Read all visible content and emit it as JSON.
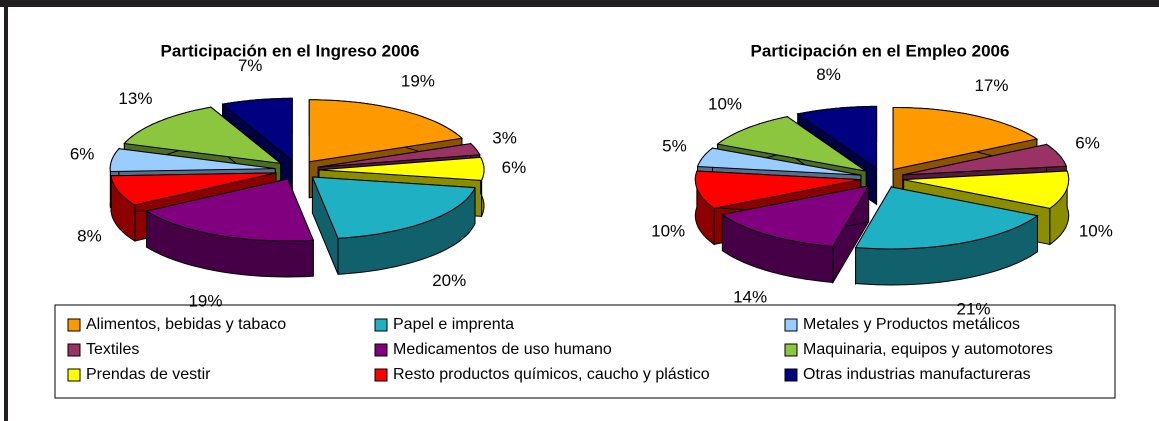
{
  "chart_data": [
    {
      "type": "pie",
      "title": "Participación en el Ingreso 2006",
      "values": [
        19,
        3,
        6,
        20,
        19,
        8,
        6,
        13,
        7
      ],
      "value_labels": [
        "19%",
        "3%",
        "6%",
        "20%",
        "19%",
        "8%",
        "6%",
        "13%",
        "7%"
      ]
    },
    {
      "type": "pie",
      "title": "Participación en el Empleo 2006",
      "values": [
        17,
        6,
        10,
        21,
        14,
        10,
        5,
        10,
        8
      ],
      "value_labels": [
        "17%",
        "6%",
        "10%",
        "21%",
        "14%",
        "10%",
        "5%",
        "10%",
        "8%"
      ]
    }
  ],
  "legend": {
    "categories": [
      "Alimentos, bebidas y tabaco",
      "Textiles",
      "Prendas de vestir",
      "Papel e imprenta",
      "Medicamentos de uso humano",
      "Resto productos químicos, caucho y plástico",
      "Metales y Productos metálicos",
      "Maquinaria, equipos y automotores",
      "Otras industrias manufactureras"
    ],
    "colors": [
      "#ff9900",
      "#993366",
      "#ffff00",
      "#1fb0c4",
      "#800080",
      "#ff0000",
      "#99ccff",
      "#8cc63f",
      "#000080"
    ]
  }
}
